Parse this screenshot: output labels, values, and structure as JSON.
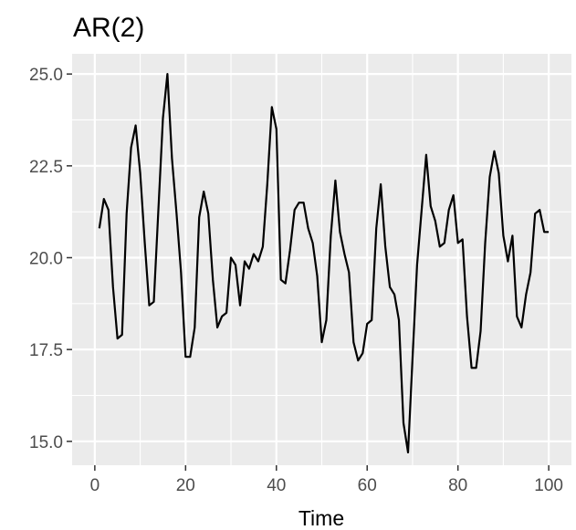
{
  "chart_data": {
    "type": "line",
    "title": "AR(2)",
    "xlabel": "Time",
    "ylabel": "",
    "xlim": [
      -5,
      105
    ],
    "ylim": [
      14.35,
      25.55
    ],
    "xticks": [
      0,
      20,
      40,
      60,
      80,
      100
    ],
    "xtick_labels": [
      "0",
      "20",
      "40",
      "60",
      "80",
      "100"
    ],
    "yticks": [
      15.0,
      17.5,
      20.0,
      22.5,
      25.0
    ],
    "ytick_labels": [
      "15.0",
      "17.5",
      "20.0",
      "22.5",
      "25.0"
    ],
    "grid": true,
    "panel_color": "#ebebeb",
    "grid_color": "#ffffff",
    "line_color": "#000000",
    "x": [
      1,
      2,
      3,
      4,
      5,
      6,
      7,
      8,
      9,
      10,
      11,
      12,
      13,
      14,
      15,
      16,
      17,
      18,
      19,
      20,
      21,
      22,
      23,
      24,
      25,
      26,
      27,
      28,
      29,
      30,
      31,
      32,
      33,
      34,
      35,
      36,
      37,
      38,
      39,
      40,
      41,
      42,
      43,
      44,
      45,
      46,
      47,
      48,
      49,
      50,
      51,
      52,
      53,
      54,
      55,
      56,
      57,
      58,
      59,
      60,
      61,
      62,
      63,
      64,
      65,
      66,
      67,
      68,
      69,
      70,
      71,
      72,
      73,
      74,
      75,
      76,
      77,
      78,
      79,
      80,
      81,
      82,
      83,
      84,
      85,
      86,
      87,
      88,
      89,
      90,
      91,
      92,
      93,
      94,
      95,
      96,
      97,
      98,
      99,
      100
    ],
    "y": [
      20.8,
      21.6,
      21.3,
      19.2,
      17.8,
      17.9,
      21.2,
      23.0,
      23.6,
      22.3,
      20.4,
      18.7,
      18.8,
      21.3,
      23.8,
      25.0,
      22.7,
      21.2,
      19.6,
      17.3,
      17.3,
      18.1,
      21.1,
      21.8,
      21.2,
      19.4,
      18.1,
      18.4,
      18.5,
      20.0,
      19.8,
      18.7,
      19.9,
      19.7,
      20.1,
      19.9,
      20.3,
      22.0,
      24.1,
      23.5,
      19.4,
      19.3,
      20.2,
      21.3,
      21.5,
      21.5,
      20.8,
      20.4,
      19.5,
      17.7,
      18.3,
      20.6,
      22.1,
      20.7,
      20.1,
      19.6,
      17.7,
      17.2,
      17.4,
      18.2,
      18.3,
      20.8,
      22.0,
      20.3,
      19.2,
      19.0,
      18.3,
      15.5,
      14.7,
      17.3,
      19.8,
      21.3,
      22.8,
      21.4,
      21.0,
      20.3,
      20.4,
      21.3,
      21.7,
      20.4,
      20.5,
      18.4,
      17.0,
      17.0,
      18.0,
      20.4,
      22.2,
      22.9,
      22.3,
      20.6,
      19.9,
      20.6,
      18.4,
      18.1,
      19.0,
      19.6,
      21.2,
      21.3,
      20.7,
      20.7
    ]
  }
}
